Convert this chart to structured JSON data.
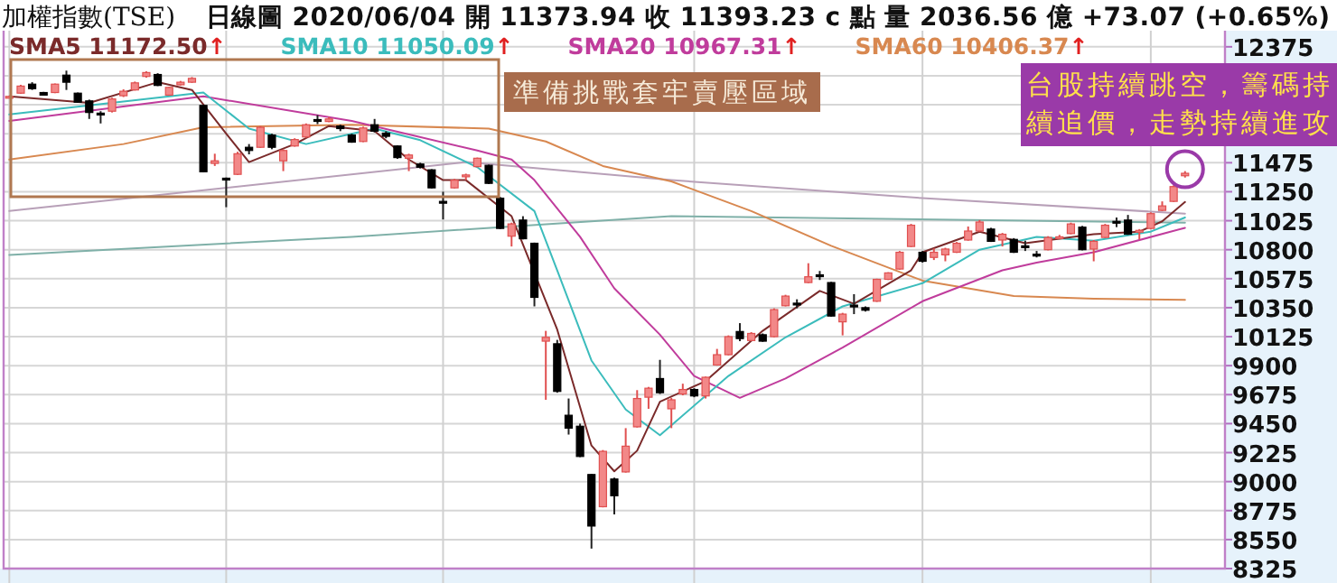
{
  "chart_data": {
    "type": "candlestick",
    "title": "加權指數(TSE)",
    "subtitle": "日線圖  2020/06/04  開 11373.94  收 11393.23 c 點  量 2036.56 億  +73.07 (+0.65%)",
    "categories": [
      null,
      null,
      null,
      null,
      null,
      null,
      null,
      null,
      null,
      null,
      null,
      null,
      null,
      null,
      null,
      null,
      null,
      null,
      null,
      null,
      null,
      null,
      null,
      null,
      null,
      null,
      null,
      null,
      null,
      null,
      null,
      null,
      null,
      null,
      null,
      null,
      null,
      null,
      null,
      null,
      null,
      null,
      null,
      null,
      null,
      null,
      null,
      null,
      null,
      null,
      null,
      null,
      null,
      null,
      null,
      null,
      null,
      null,
      null,
      null,
      null,
      null,
      null,
      null,
      null,
      null,
      null,
      null,
      null,
      null,
      null,
      null,
      null,
      null,
      null,
      null,
      null,
      null,
      null,
      null,
      null,
      null,
      null,
      null,
      null,
      null,
      null,
      null,
      null,
      null,
      null,
      null,
      null,
      null,
      null,
      null,
      null,
      null,
      null,
      null,
      null,
      null,
      null,
      null,
      null,
      null,
      null
    ],
    "ohlc": [
      [
        11990,
        11995,
        11985,
        11990
      ],
      [
        12015,
        12080,
        12010,
        12070
      ],
      [
        12085,
        12100,
        12040,
        12050
      ],
      [
        12020,
        12025,
        12000,
        12000
      ],
      [
        12020,
        12090,
        12015,
        12085
      ],
      [
        12155,
        12190,
        12040,
        12100
      ],
      [
        12015,
        12020,
        11940,
        11945
      ],
      [
        11955,
        11965,
        11815,
        11865
      ],
      [
        11860,
        11875,
        11780,
        11850
      ],
      [
        11875,
        11980,
        11865,
        11970
      ],
      [
        11995,
        12045,
        11985,
        12030
      ],
      [
        12040,
        12105,
        12035,
        12095
      ],
      [
        12145,
        12185,
        12135,
        12175
      ],
      [
        12160,
        12170,
        12070,
        12075
      ],
      [
        12000,
        12065,
        11995,
        12060
      ],
      [
        12080,
        12110,
        12075,
        12100
      ],
      [
        12100,
        12140,
        12095,
        12130
      ],
      [
        11920,
        11925,
        11400,
        11405
      ],
      [
        11470,
        11545,
        11450,
        11490
      ],
      [
        11355,
        11360,
        11130,
        11345
      ],
      [
        11385,
        11560,
        11380,
        11545
      ],
      [
        11595,
        11620,
        11540,
        11570
      ],
      [
        11595,
        11760,
        11590,
        11750
      ],
      [
        11690,
        11700,
        11580,
        11595
      ],
      [
        11490,
        11580,
        11410,
        11570
      ],
      [
        11605,
        11665,
        11600,
        11655
      ],
      [
        11675,
        11780,
        11670,
        11770
      ],
      [
        11810,
        11845,
        11775,
        11800
      ],
      [
        11795,
        11830,
        11790,
        11815
      ],
      [
        11760,
        11770,
        11720,
        11740
      ],
      [
        11690,
        11700,
        11630,
        11635
      ],
      [
        11640,
        11755,
        11635,
        11745
      ],
      [
        11770,
        11815,
        11710,
        11720
      ],
      [
        11705,
        11720,
        11665,
        11680
      ],
      [
        11605,
        11610,
        11505,
        11515
      ],
      [
        11510,
        11545,
        11410,
        11535
      ],
      [
        11465,
        11475,
        11430,
        11440
      ],
      [
        11420,
        11425,
        11275,
        11280
      ],
      [
        11175,
        11250,
        11035,
        11165
      ],
      [
        11280,
        11350,
        11275,
        11340
      ],
      [
        11370,
        11390,
        11340,
        11380
      ],
      [
        11445,
        11515,
        11440,
        11510
      ],
      [
        11455,
        11460,
        11310,
        11315
      ],
      [
        11200,
        11210,
        10960,
        10965
      ],
      [
        10905,
        11010,
        10825,
        11000
      ],
      [
        11030,
        11060,
        10880,
        10885
      ],
      [
        10850,
        10855,
        10360,
        10430
      ],
      [
        10090,
        10170,
        9635,
        10120
      ],
      [
        10070,
        10100,
        9690,
        9700
      ],
      [
        9515,
        9645,
        9365,
        9415
      ],
      [
        9430,
        9450,
        9190,
        9195
      ],
      [
        9055,
        9060,
        8480,
        8655
      ],
      [
        8805,
        9245,
        8800,
        9235
      ],
      [
        9020,
        9030,
        8745,
        8890
      ],
      [
        9075,
        9415,
        9070,
        9275
      ],
      [
        9425,
        9710,
        9420,
        9645
      ],
      [
        9655,
        9735,
        9565,
        9725
      ],
      [
        9800,
        9945,
        9680,
        9690
      ],
      [
        9565,
        9650,
        9415,
        9635
      ],
      [
        9680,
        9760,
        9670,
        9715
      ],
      [
        9715,
        9725,
        9655,
        9665
      ],
      [
        9665,
        9815,
        9645,
        9810
      ],
      [
        9905,
        10030,
        9900,
        9985
      ],
      [
        9985,
        10135,
        9980,
        10125
      ],
      [
        10165,
        10230,
        10090,
        10110
      ],
      [
        10095,
        10160,
        10090,
        10150
      ],
      [
        10140,
        10150,
        10085,
        10090
      ],
      [
        10125,
        10345,
        10120,
        10335
      ],
      [
        10365,
        10450,
        10360,
        10440
      ],
      [
        10385,
        10415,
        10345,
        10375
      ],
      [
        10545,
        10695,
        10540,
        10590
      ],
      [
        10605,
        10635,
        10565,
        10595
      ],
      [
        10545,
        10550,
        10280,
        10285
      ],
      [
        10240,
        10310,
        10135,
        10300
      ],
      [
        10370,
        10455,
        10300,
        10360
      ],
      [
        10350,
        10360,
        10320,
        10330
      ],
      [
        10400,
        10575,
        10395,
        10570
      ],
      [
        10570,
        10625,
        10565,
        10620
      ],
      [
        10650,
        10790,
        10645,
        10780
      ],
      [
        10825,
        11000,
        10820,
        10990
      ],
      [
        10780,
        10790,
        10700,
        10710
      ],
      [
        10740,
        10810,
        10720,
        10780
      ],
      [
        10760,
        10815,
        10710,
        10805
      ],
      [
        10780,
        10860,
        10775,
        10850
      ],
      [
        10875,
        10980,
        10870,
        10945
      ],
      [
        10945,
        11030,
        10940,
        11015
      ],
      [
        10960,
        10970,
        10860,
        10865
      ],
      [
        10875,
        10930,
        10825,
        10920
      ],
      [
        10880,
        10890,
        10775,
        10780
      ],
      [
        10830,
        10870,
        10790,
        10820
      ],
      [
        10765,
        10790,
        10740,
        10755
      ],
      [
        10800,
        10905,
        10795,
        10895
      ],
      [
        10890,
        10915,
        10880,
        10900
      ],
      [
        10925,
        11010,
        10920,
        11000
      ],
      [
        10975,
        10985,
        10795,
        10800
      ],
      [
        10805,
        10875,
        10710,
        10865
      ],
      [
        10895,
        11000,
        10890,
        10990
      ],
      [
        11020,
        11050,
        10975,
        11010
      ],
      [
        11030,
        11070,
        10915,
        10920
      ],
      [
        10940,
        10960,
        10880,
        10950
      ],
      [
        10965,
        11090,
        10960,
        11080
      ],
      [
        11105,
        11175,
        11100,
        11140
      ],
      [
        11175,
        11300,
        11170,
        11290
      ],
      [
        11373.94,
        11410,
        11360,
        11393.23
      ],
      null,
      null,
      null
    ],
    "series": [
      {
        "type": "line",
        "color": "#b8a0b8",
        "values": [
          11100,
          null,
          null,
          null,
          null,
          null,
          null,
          null,
          null,
          null,
          null,
          null,
          null,
          null,
          null,
          null,
          null,
          null,
          null,
          null,
          null,
          null,
          null,
          null,
          null,
          null,
          null,
          null,
          null,
          null,
          null,
          null,
          null,
          null,
          null,
          null,
          null,
          null,
          null,
          null,
          11480,
          null,
          null,
          null,
          null,
          null,
          null,
          null,
          null,
          null,
          null,
          null,
          null,
          null,
          null,
          null,
          null,
          null,
          11340,
          null,
          null,
          null,
          null,
          null,
          null,
          null,
          null,
          null,
          null,
          null,
          null,
          null,
          null,
          null,
          null,
          null,
          null,
          null,
          null,
          null,
          11200,
          null,
          null,
          null,
          null,
          null,
          null,
          null,
          null,
          null,
          null,
          null,
          null,
          null,
          null,
          null,
          null,
          null,
          null,
          null,
          null,
          null,
          null,
          11080,
          null,
          null,
          null
        ]
      },
      {
        "type": "line",
        "color": "#7fb0a8",
        "values": [
          10760,
          null,
          null,
          null,
          null,
          null,
          null,
          null,
          null,
          null,
          null,
          null,
          null,
          null,
          null,
          null,
          null,
          null,
          null,
          null,
          null,
          null,
          null,
          null,
          null,
          null,
          null,
          null,
          null,
          null,
          10900,
          null,
          null,
          null,
          null,
          null,
          null,
          null,
          null,
          null,
          null,
          null,
          null,
          null,
          null,
          null,
          null,
          null,
          null,
          null,
          null,
          null,
          null,
          null,
          null,
          null,
          null,
          null,
          11060,
          null,
          null,
          null,
          null,
          null,
          null,
          null,
          null,
          null,
          null,
          null,
          null,
          null,
          null,
          null,
          null,
          null,
          null,
          null,
          null,
          null,
          null,
          null,
          null,
          null,
          null,
          null,
          null,
          null,
          null,
          null,
          null,
          null,
          null,
          null,
          null,
          null,
          null,
          null,
          null,
          null,
          null,
          null,
          null,
          11010,
          null,
          null,
          null
        ]
      },
      {
        "type": "line",
        "name": "SMA60 10406.37↑",
        "color": "#d88850",
        "values": [
          11500,
          null,
          null,
          null,
          null,
          null,
          null,
          null,
          null,
          null,
          11620,
          null,
          null,
          null,
          null,
          null,
          null,
          11750,
          null,
          null,
          null,
          null,
          null,
          null,
          null,
          null,
          null,
          null,
          null,
          null,
          11770,
          null,
          null,
          null,
          null,
          null,
          null,
          null,
          null,
          null,
          null,
          null,
          11740,
          null,
          null,
          null,
          null,
          11640,
          null,
          null,
          null,
          null,
          11450,
          null,
          null,
          null,
          null,
          null,
          11330,
          null,
          null,
          null,
          null,
          null,
          null,
          11100,
          null,
          null,
          null,
          null,
          null,
          null,
          10830,
          null,
          null,
          null,
          null,
          null,
          null,
          null,
          10560,
          null,
          null,
          null,
          null,
          null,
          null,
          null,
          10440,
          null,
          null,
          null,
          null,
          null,
          null,
          10420,
          null,
          null,
          null,
          null,
          null,
          null,
          null,
          10410,
          null,
          null,
          null
        ]
      },
      {
        "type": "line",
        "name": "SMA20 10967.31↑",
        "color": "#c03c9c",
        "values": [
          11800,
          null,
          null,
          null,
          null,
          null,
          null,
          null,
          null,
          null,
          null,
          null,
          null,
          null,
          null,
          null,
          null,
          11990,
          null,
          null,
          null,
          null,
          null,
          null,
          null,
          null,
          null,
          null,
          null,
          null,
          11800,
          null,
          null,
          null,
          null,
          null,
          null,
          null,
          null,
          null,
          null,
          11570,
          null,
          null,
          11500,
          null,
          11340,
          null,
          null,
          null,
          10900,
          null,
          null,
          10500,
          null,
          null,
          null,
          10140,
          null,
          null,
          9820,
          null,
          null,
          null,
          9650,
          null,
          null,
          null,
          9800,
          null,
          null,
          null,
          null,
          10040,
          null,
          null,
          null,
          null,
          null,
          null,
          10400,
          null,
          null,
          null,
          null,
          null,
          null,
          10640,
          null,
          null,
          10700,
          null,
          null,
          null,
          null,
          10780,
          null,
          null,
          null,
          null,
          null,
          null,
          null,
          10970,
          null,
          null,
          null
        ]
      },
      {
        "type": "line",
        "name": "SMA10 11050.09↑",
        "color": "#3bbcbc",
        "values": [
          11850,
          null,
          null,
          null,
          null,
          null,
          null,
          null,
          null,
          null,
          11950,
          null,
          null,
          null,
          null,
          null,
          null,
          12020,
          null,
          null,
          null,
          11740,
          null,
          null,
          null,
          null,
          11620,
          null,
          null,
          null,
          null,
          null,
          11740,
          null,
          null,
          null,
          11650,
          null,
          null,
          null,
          null,
          11440,
          null,
          null,
          null,
          null,
          11100,
          null,
          10640,
          null,
          null,
          9940,
          null,
          null,
          9560,
          null,
          null,
          9360,
          null,
          null,
          null,
          null,
          null,
          9820,
          null,
          null,
          null,
          null,
          10120,
          null,
          null,
          null,
          null,
          10360,
          null,
          null,
          null,
          null,
          null,
          null,
          10540,
          null,
          null,
          null,
          null,
          10800,
          null,
          null,
          null,
          null,
          10900,
          null,
          null,
          null,
          null,
          10870,
          null,
          null,
          null,
          null,
          10940,
          null,
          null,
          11050,
          null,
          null,
          null
        ]
      },
      {
        "type": "line",
        "name": "SMA5 11172.50↑",
        "color": "#7a2a2a",
        "values": [
          11990,
          null,
          null,
          null,
          null,
          null,
          null,
          11940,
          null,
          null,
          null,
          null,
          null,
          12100,
          null,
          null,
          12040,
          null,
          null,
          11700,
          null,
          11480,
          null,
          null,
          null,
          11620,
          null,
          null,
          11760,
          null,
          null,
          null,
          11720,
          null,
          null,
          11500,
          null,
          null,
          11340,
          null,
          11340,
          null,
          null,
          null,
          11060,
          null,
          null,
          null,
          10180,
          null,
          null,
          9280,
          null,
          9080,
          null,
          9240,
          null,
          9620,
          null,
          null,
          null,
          9780,
          null,
          null,
          null,
          null,
          10170,
          null,
          null,
          null,
          null,
          10480,
          null,
          null,
          10380,
          null,
          null,
          null,
          null,
          10640,
          10780,
          null,
          null,
          null,
          null,
          10940,
          null,
          null,
          null,
          10850,
          null,
          null,
          null,
          null,
          null,
          10920,
          null,
          null,
          null,
          10940,
          null,
          11020,
          null,
          11170,
          null,
          null,
          null
        ]
      }
    ],
    "ylim": [
      8325,
      12500
    ],
    "yticks": [
      12375,
      {
        "value": 12150,
        "label": null
      },
      {
        "value": 11925,
        "label": null
      },
      {
        "value": 11700,
        "label": null
      },
      11475,
      11250,
      11025,
      10800,
      10575,
      10350,
      10125,
      9900,
      9675,
      9450,
      9225,
      9000,
      8775,
      8550,
      8325
    ],
    "grid": true,
    "legend": "top left",
    "tick_labels": "y",
    "annotations": [
      "準備挑戰套牢賣壓區域",
      "台股持續跳空，籌碼持續追價，走勢持續進攻"
    ]
  }
}
